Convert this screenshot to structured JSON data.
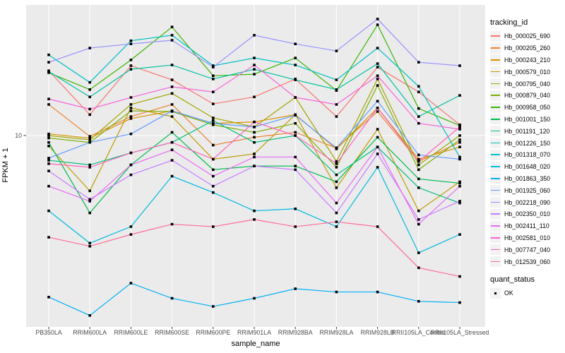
{
  "figure": {
    "xlabel": "sample_name",
    "ylabel": "FPKM + 1",
    "y_tick_label": "10",
    "legend_title": "tracking_id",
    "quant_legend_title": "quant_status",
    "quant_legend_item": "OK",
    "colors": {
      "panel_bg": "#EBEBEB",
      "grid": "#FFFFFF",
      "tick_text": "#4D4D4D",
      "tick_mark": "#333333",
      "text": "#000000",
      "legend_key_bg": "#F2F2F2",
      "point": "#000000"
    }
  },
  "chart_data": {
    "type": "line",
    "title": "",
    "xlabel": "sample_name",
    "ylabel": "FPKM + 1",
    "y_scale": "log10",
    "y_tick_labels": [
      "10"
    ],
    "ylim_approx": [
      1.05,
      45
    ],
    "grid": true,
    "legend_position": "right",
    "legend_title": "tracking_id",
    "point_legend": {
      "title": "quant_status",
      "items": [
        "OK"
      ]
    },
    "point_shape": "filled-square",
    "categories": [
      "PB350LA",
      "RRIM600LA",
      "RRIM600LE",
      "RRIM600SE",
      "RRIM600PE",
      "RRIM901LA",
      "RRIM928BA",
      "RRIM928LA",
      "RRIM928LB",
      "RRII105LA_Control",
      "RRII105LA_Stressed"
    ],
    "series": [
      {
        "name": "Hb_000025_690",
        "color": "#F8766D",
        "values": [
          22.0,
          12.9,
          23.4,
          19.7,
          14.7,
          16.0,
          19.9,
          12.6,
          23.0,
          17.0,
          11.4
        ]
      },
      {
        "name": "Hb_000205_260",
        "color": "#EA8331",
        "values": [
          14.6,
          9.9,
          12.6,
          14.6,
          8.9,
          9.8,
          10.4,
          8.6,
          13.4,
          7.3,
          9.2
        ]
      },
      {
        "name": "Hb_000243_210",
        "color": "#D89000",
        "values": [
          10.2,
          9.7,
          12.3,
          13.5,
          11.6,
          11.8,
          12.9,
          8.5,
          14.0,
          7.5,
          8.7
        ]
      },
      {
        "name": "Hb_000579_010",
        "color": "#C09B00",
        "values": [
          8.8,
          5.1,
          14.0,
          12.6,
          7.5,
          8.0,
          12.9,
          5.3,
          10.8,
          4.0,
          5.7
        ]
      },
      {
        "name": "Hb_000795_040",
        "color": "#A3A500",
        "values": [
          10.0,
          9.5,
          14.6,
          16.7,
          12.4,
          11.1,
          15.9,
          7.3,
          19.9,
          7.0,
          10.0
        ]
      },
      {
        "name": "Hb_000879_040",
        "color": "#7CAE00",
        "values": [
          9.7,
          9.2,
          13.5,
          13.4,
          11.4,
          10.4,
          11.6,
          6.8,
          18.4,
          6.6,
          9.5
        ]
      },
      {
        "name": "Hb_000958_050",
        "color": "#39B600",
        "values": [
          21.5,
          17.5,
          25.1,
          37.5,
          20.7,
          21.1,
          25.7,
          17.3,
          38.5,
          13.9,
          11.3
        ]
      },
      {
        "name": "Hb_001001_150",
        "color": "#00BB4E",
        "values": [
          9.2,
          3.9,
          7.0,
          10.4,
          6.6,
          6.9,
          6.9,
          5.7,
          9.8,
          5.9,
          5.6
        ]
      },
      {
        "name": "Hb_001191_120",
        "color": "#00BF7D",
        "values": [
          7.4,
          7.0,
          8.1,
          9.2,
          12.0,
          9.2,
          10.0,
          6.2,
          8.7,
          5.3,
          4.4
        ]
      },
      {
        "name": "Hb_001226_150",
        "color": "#00C1A3",
        "values": [
          21.8,
          16.0,
          22.4,
          23.6,
          19.9,
          22.4,
          19.7,
          17.5,
          24.0,
          12.6,
          16.3
        ]
      },
      {
        "name": "Hb_001318_070",
        "color": "#00BFC4",
        "values": [
          26.7,
          19.1,
          31.7,
          33.9,
          23.4,
          25.7,
          23.6,
          19.7,
          29.0,
          18.2,
          7.7
        ]
      },
      {
        "name": "Hb_001648_020",
        "color": "#00BAE0",
        "values": [
          4.0,
          2.7,
          3.3,
          6.1,
          5.0,
          4.0,
          4.1,
          3.3,
          6.8,
          2.4,
          3.0
        ]
      },
      {
        "name": "Hb_001863_350",
        "color": "#00B0F6",
        "values": [
          1.4,
          1.12,
          1.66,
          1.38,
          1.25,
          1.38,
          1.55,
          1.49,
          1.49,
          1.33,
          1.31
        ]
      },
      {
        "name": "Hb_001925_060",
        "color": "#619CFF",
        "values": [
          7.6,
          9.2,
          10.2,
          13.5,
          11.6,
          11.1,
          12.8,
          8.6,
          15.2,
          7.9,
          7.5
        ]
      },
      {
        "name": "Hb_002218_090",
        "color": "#9590FF",
        "values": [
          24.4,
          29.0,
          30.5,
          31.9,
          23.0,
          33.9,
          30.5,
          28.0,
          41.3,
          24.4,
          23.4
        ]
      },
      {
        "name": "Hb_002350_010",
        "color": "#C77CFF",
        "values": [
          6.5,
          4.6,
          6.2,
          7.4,
          5.4,
          6.9,
          6.6,
          3.9,
          8.0,
          3.6,
          4.5
        ]
      },
      {
        "name": "Hb_002411_110",
        "color": "#E76BF3",
        "values": [
          5.4,
          4.5,
          7.0,
          8.4,
          6.1,
          7.7,
          7.7,
          4.4,
          8.7,
          3.4,
          5.4
        ]
      },
      {
        "name": "Hb_002581_010",
        "color": "#FA62DB",
        "values": [
          15.6,
          13.8,
          15.9,
          18.1,
          17.0,
          23.6,
          15.9,
          14.6,
          20.7,
          11.6,
          10.8
        ]
      },
      {
        "name": "Hb_007747_040",
        "color": "#FF62BC",
        "values": [
          7.1,
          6.8,
          8.1,
          9.2,
          7.5,
          11.8,
          10.0,
          7.1,
          14.0,
          7.3,
          11.1
        ]
      },
      {
        "name": "Hb_012539_060",
        "color": "#FF6A98",
        "values": [
          2.9,
          2.6,
          3.0,
          3.4,
          3.3,
          3.6,
          3.3,
          3.5,
          3.3,
          2.0,
          1.8
        ]
      }
    ]
  }
}
